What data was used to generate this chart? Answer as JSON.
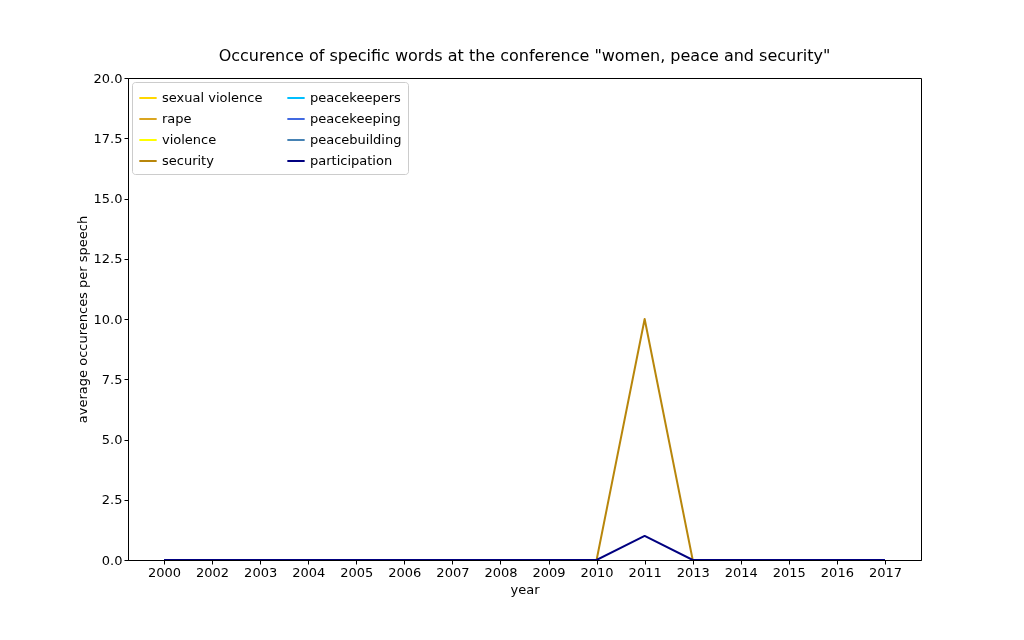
{
  "chart_data": {
    "type": "line",
    "title": "Occurence of specific words at the conference \"women, peace and security\"",
    "xlabel": "year",
    "ylabel": "average occurences per speech",
    "categories": [
      "2000",
      "2002",
      "2003",
      "2004",
      "2005",
      "2006",
      "2007",
      "2008",
      "2009",
      "2010",
      "2011",
      "2013",
      "2014",
      "2015",
      "2016",
      "2017"
    ],
    "ylim": [
      0,
      20
    ],
    "yticks": [
      {
        "value": 0,
        "label": "0.0"
      },
      {
        "value": 2.5,
        "label": "2.5"
      },
      {
        "value": 5,
        "label": "5.0"
      },
      {
        "value": 7.5,
        "label": "7.5"
      },
      {
        "value": 10,
        "label": "10.0"
      },
      {
        "value": 12.5,
        "label": "12.5"
      },
      {
        "value": 15,
        "label": "15.0"
      },
      {
        "value": 17.5,
        "label": "17.5"
      },
      {
        "value": 20,
        "label": "20.0"
      }
    ],
    "legend": "top left",
    "grid": false,
    "series": [
      {
        "name": "sexual violence",
        "color": "#ffd700",
        "values": [
          null,
          null,
          null,
          null,
          null,
          null,
          null,
          null,
          null,
          null,
          null,
          null,
          null,
          null,
          null,
          null
        ]
      },
      {
        "name": "rape",
        "color": "#daa520",
        "values": [
          null,
          null,
          null,
          null,
          null,
          null,
          null,
          null,
          null,
          null,
          null,
          null,
          null,
          null,
          null,
          null
        ]
      },
      {
        "name": "violence",
        "color": "#ffff00",
        "values": [
          null,
          null,
          null,
          null,
          null,
          null,
          null,
          null,
          null,
          null,
          null,
          null,
          null,
          null,
          null,
          null
        ]
      },
      {
        "name": "security",
        "color": "#b8860b",
        "values": [
          null,
          null,
          null,
          null,
          null,
          null,
          null,
          null,
          null,
          0,
          10,
          0,
          null,
          null,
          null,
          null
        ]
      },
      {
        "name": "peacekeepers",
        "color": "#00bfff",
        "values": [
          null,
          null,
          null,
          null,
          null,
          null,
          null,
          null,
          null,
          null,
          null,
          null,
          null,
          null,
          null,
          null
        ]
      },
      {
        "name": "peacekeeping",
        "color": "#4169e1",
        "values": [
          null,
          null,
          null,
          null,
          null,
          null,
          null,
          null,
          null,
          null,
          null,
          null,
          null,
          null,
          null,
          null
        ]
      },
      {
        "name": "peacebuilding",
        "color": "#4682b4",
        "values": [
          null,
          null,
          null,
          null,
          null,
          null,
          null,
          null,
          null,
          null,
          null,
          null,
          null,
          null,
          null,
          null
        ]
      },
      {
        "name": "participation",
        "color": "#000080",
        "values": [
          0,
          0,
          0,
          0,
          0,
          0,
          0,
          0,
          0,
          0,
          1,
          0,
          0,
          0,
          0,
          0
        ]
      }
    ]
  }
}
